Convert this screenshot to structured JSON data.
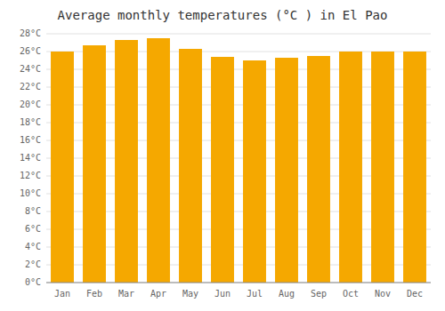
{
  "chart_data": {
    "type": "bar",
    "title": "Average monthly temperatures (°C ) in El Pao",
    "categories": [
      "Jan",
      "Feb",
      "Mar",
      "Apr",
      "May",
      "Jun",
      "Jul",
      "Aug",
      "Sep",
      "Oct",
      "Nov",
      "Dec"
    ],
    "values": [
      26.0,
      26.7,
      27.3,
      27.5,
      26.3,
      25.4,
      25.0,
      25.3,
      25.5,
      26.0,
      26.0,
      26.0
    ],
    "color": "#F5A800",
    "ylim": [
      0,
      28
    ],
    "yticks": [
      {
        "value": 0,
        "label": "0°C"
      },
      {
        "value": 2,
        "label": "2°C"
      },
      {
        "value": 4,
        "label": "4°C"
      },
      {
        "value": 6,
        "label": "6°C"
      },
      {
        "value": 8,
        "label": "8°C"
      },
      {
        "value": 10,
        "label": "10°C"
      },
      {
        "value": 12,
        "label": "12°C"
      },
      {
        "value": 14,
        "label": "14°C"
      },
      {
        "value": 16,
        "label": "16°C"
      },
      {
        "value": 18,
        "label": "18°C"
      },
      {
        "value": 20,
        "label": "20°C"
      },
      {
        "value": 22,
        "label": "22°C"
      },
      {
        "value": 24,
        "label": "24°C"
      },
      {
        "value": 26,
        "label": "26°C"
      },
      {
        "value": 28,
        "label": "28°C"
      }
    ],
    "grid": true
  }
}
